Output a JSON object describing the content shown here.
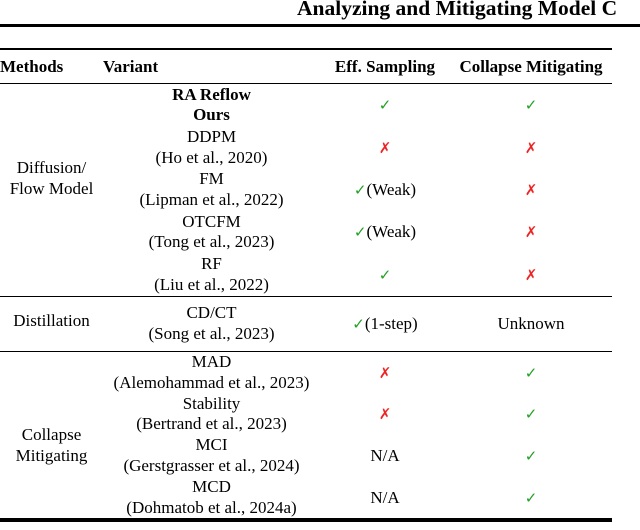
{
  "title": "Analyzing and Mitigating Model C",
  "colors": {
    "check_green": "#22a122",
    "cross_red": "#ee2424"
  },
  "table": {
    "headers": {
      "methods": "Methods",
      "variant": "Variant",
      "sampling": "Eff. Sampling",
      "mitigating": "Collapse Mitigating"
    },
    "groups": [
      {
        "method_line1": "Diffusion/",
        "method_line2": "Flow Model",
        "rows": [
          {
            "name": "RA Reflow",
            "cite": "Ours",
            "sampling": {
              "glyph": "✓",
              "type": "check",
              "suffix": ""
            },
            "mitigating": {
              "glyph": "✓",
              "type": "check",
              "suffix": ""
            }
          },
          {
            "name": "DDPM",
            "cite": "(Ho et al., 2020)",
            "sampling": {
              "glyph": "✗",
              "type": "cross",
              "suffix": ""
            },
            "mitigating": {
              "glyph": "✗",
              "type": "cross",
              "suffix": ""
            }
          },
          {
            "name": "FM",
            "cite": "(Lipman et al., 2022)",
            "sampling": {
              "glyph": "✓",
              "type": "check",
              "suffix": "(Weak)"
            },
            "mitigating": {
              "glyph": "✗",
              "type": "cross",
              "suffix": ""
            }
          },
          {
            "name": "OTCFM",
            "cite": "(Tong et al., 2023)",
            "sampling": {
              "glyph": "✓",
              "type": "check",
              "suffix": "(Weak)"
            },
            "mitigating": {
              "glyph": "✗",
              "type": "cross",
              "suffix": ""
            }
          },
          {
            "name": "RF",
            "cite": "(Liu et al., 2022)",
            "sampling": {
              "glyph": "✓",
              "type": "check",
              "suffix": ""
            },
            "mitigating": {
              "glyph": "✗",
              "type": "cross",
              "suffix": ""
            }
          }
        ]
      },
      {
        "method_line1": "Distillation",
        "method_line2": "",
        "rows": [
          {
            "name": "CD/CT",
            "cite": "(Song et al., 2023)",
            "sampling": {
              "glyph": "✓",
              "type": "check",
              "suffix": "(1-step)"
            },
            "mitigating": {
              "glyph": "Unknown",
              "type": "plain",
              "suffix": ""
            }
          }
        ]
      },
      {
        "method_line1": "Collapse",
        "method_line2": "Mitigating",
        "rows": [
          {
            "name": "MAD",
            "cite": "(Alemohammad et al., 2023)",
            "sampling": {
              "glyph": "✗",
              "type": "cross",
              "suffix": ""
            },
            "mitigating": {
              "glyph": "✓",
              "type": "check",
              "suffix": ""
            }
          },
          {
            "name": "Stability",
            "cite": "(Bertrand et al., 2023)",
            "sampling": {
              "glyph": "✗",
              "type": "cross",
              "suffix": ""
            },
            "mitigating": {
              "glyph": "✓",
              "type": "check",
              "suffix": ""
            }
          },
          {
            "name": "MCI",
            "cite": "(Gerstgrasser et al., 2024)",
            "sampling": {
              "glyph": "N/A",
              "type": "plain",
              "suffix": ""
            },
            "mitigating": {
              "glyph": "✓",
              "type": "check",
              "suffix": ""
            }
          },
          {
            "name": "MCD",
            "cite": "(Dohmatob et al., 2024a)",
            "sampling": {
              "glyph": "N/A",
              "type": "plain",
              "suffix": ""
            },
            "mitigating": {
              "glyph": "✓",
              "type": "check",
              "suffix": ""
            }
          }
        ]
      }
    ]
  }
}
